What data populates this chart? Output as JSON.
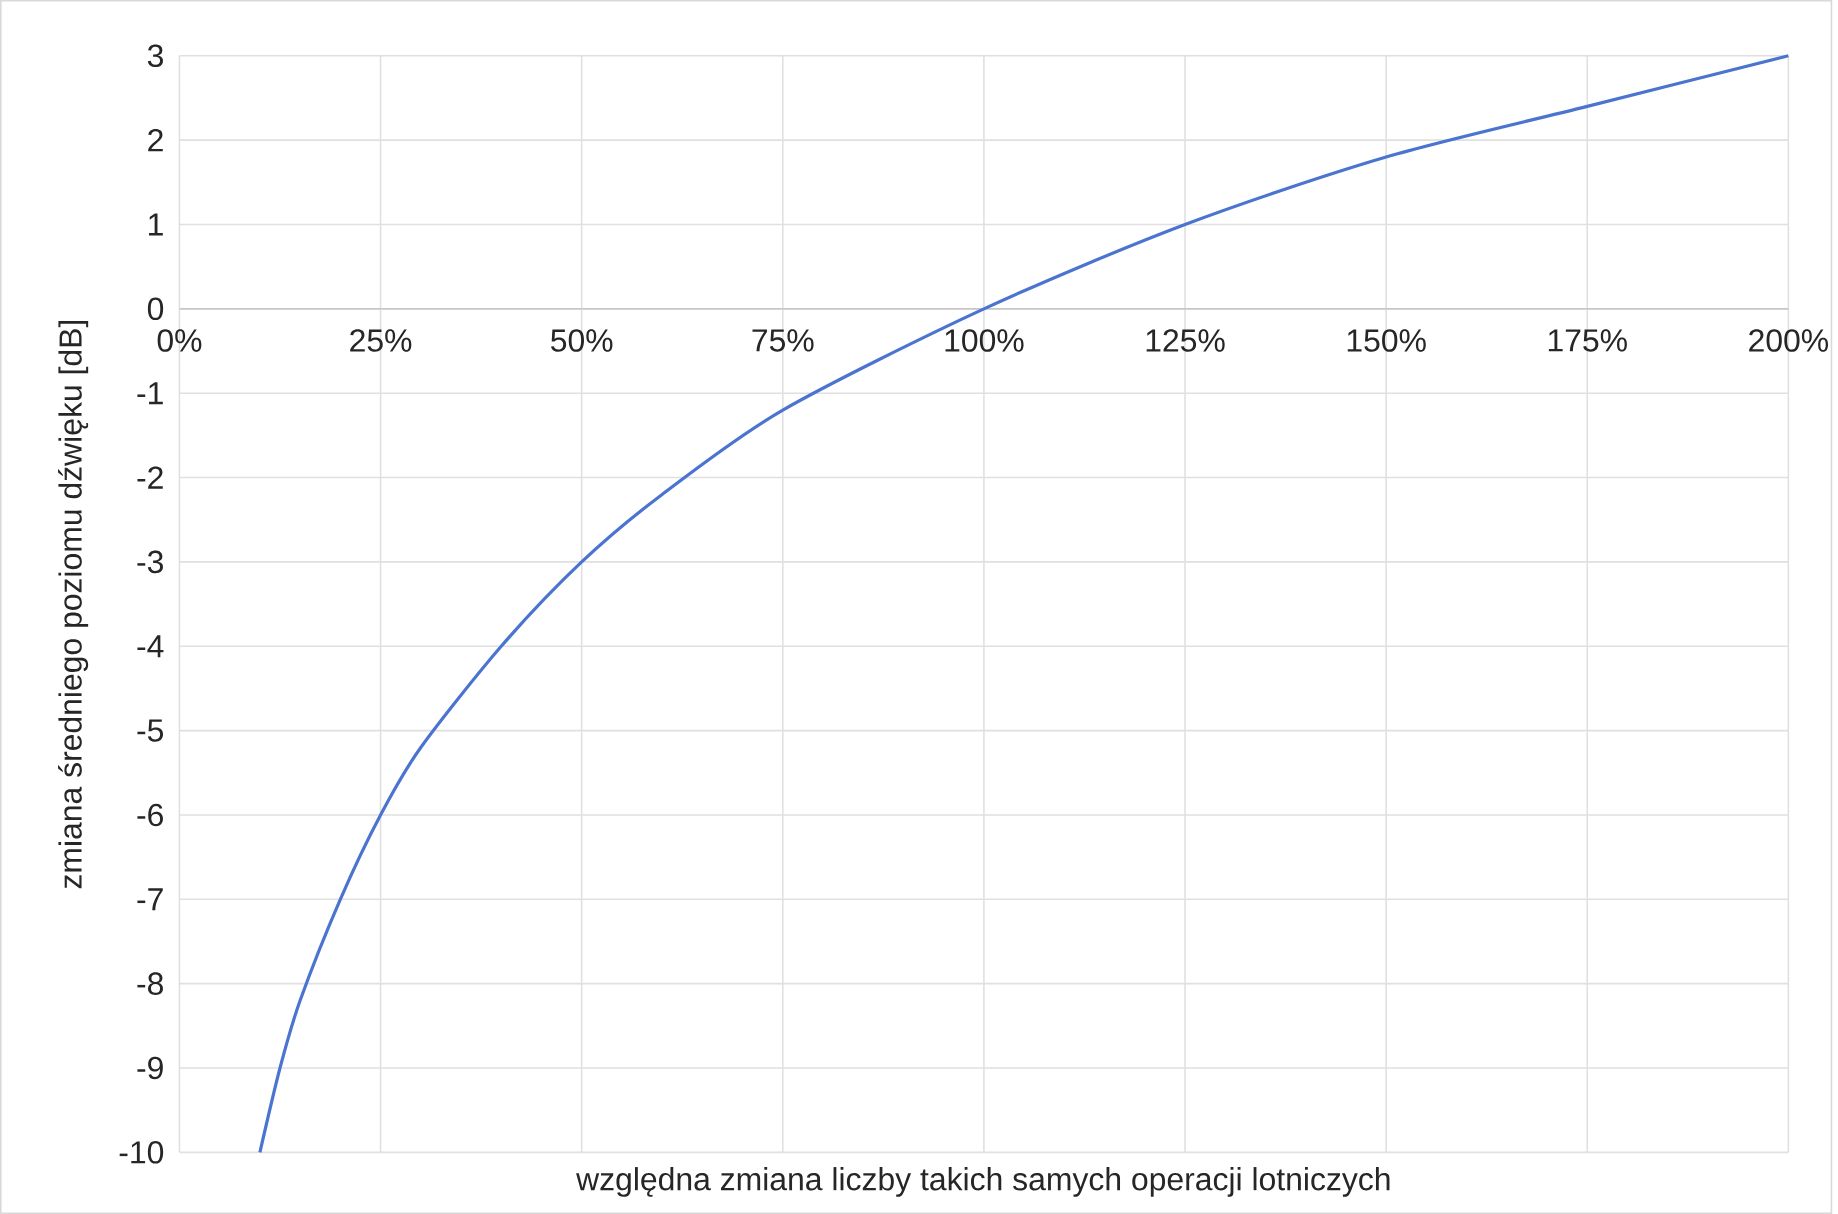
{
  "chart_data": {
    "type": "line",
    "xlabel": "względna zmiana liczby takich samych operacji lotniczych",
    "ylabel": "zmiana średniego poziomu dźwięku [dB]",
    "x": [
      10,
      12.5,
      15,
      20,
      25,
      30,
      40,
      50,
      60,
      75,
      100,
      125,
      150,
      175,
      200
    ],
    "series": [
      {
        "color": "#4a74d0",
        "values": [
          -10,
          -9.0,
          -8.2,
          -7.0,
          -6.0,
          -5.2,
          -4.0,
          -3.0,
          -2.2,
          -1.2,
          0,
          1.0,
          1.8,
          2.4,
          3.0
        ]
      }
    ],
    "xlim": [
      0,
      200
    ],
    "ylim": [
      -10,
      3
    ],
    "xticks": [
      {
        "value": 0,
        "label": "0%"
      },
      {
        "value": 25,
        "label": "25%"
      },
      {
        "value": 50,
        "label": "50%"
      },
      {
        "value": 75,
        "label": "75%"
      },
      {
        "value": 100,
        "label": "100%"
      },
      {
        "value": 125,
        "label": "125%"
      },
      {
        "value": 150,
        "label": "150%"
      },
      {
        "value": 175,
        "label": "175%"
      },
      {
        "value": 200,
        "label": "200%"
      }
    ],
    "yticks": [
      -10,
      -9,
      -8,
      -7,
      -6,
      -5,
      -4,
      -3,
      -2,
      -1,
      0,
      1,
      2,
      3
    ],
    "grid": true
  }
}
